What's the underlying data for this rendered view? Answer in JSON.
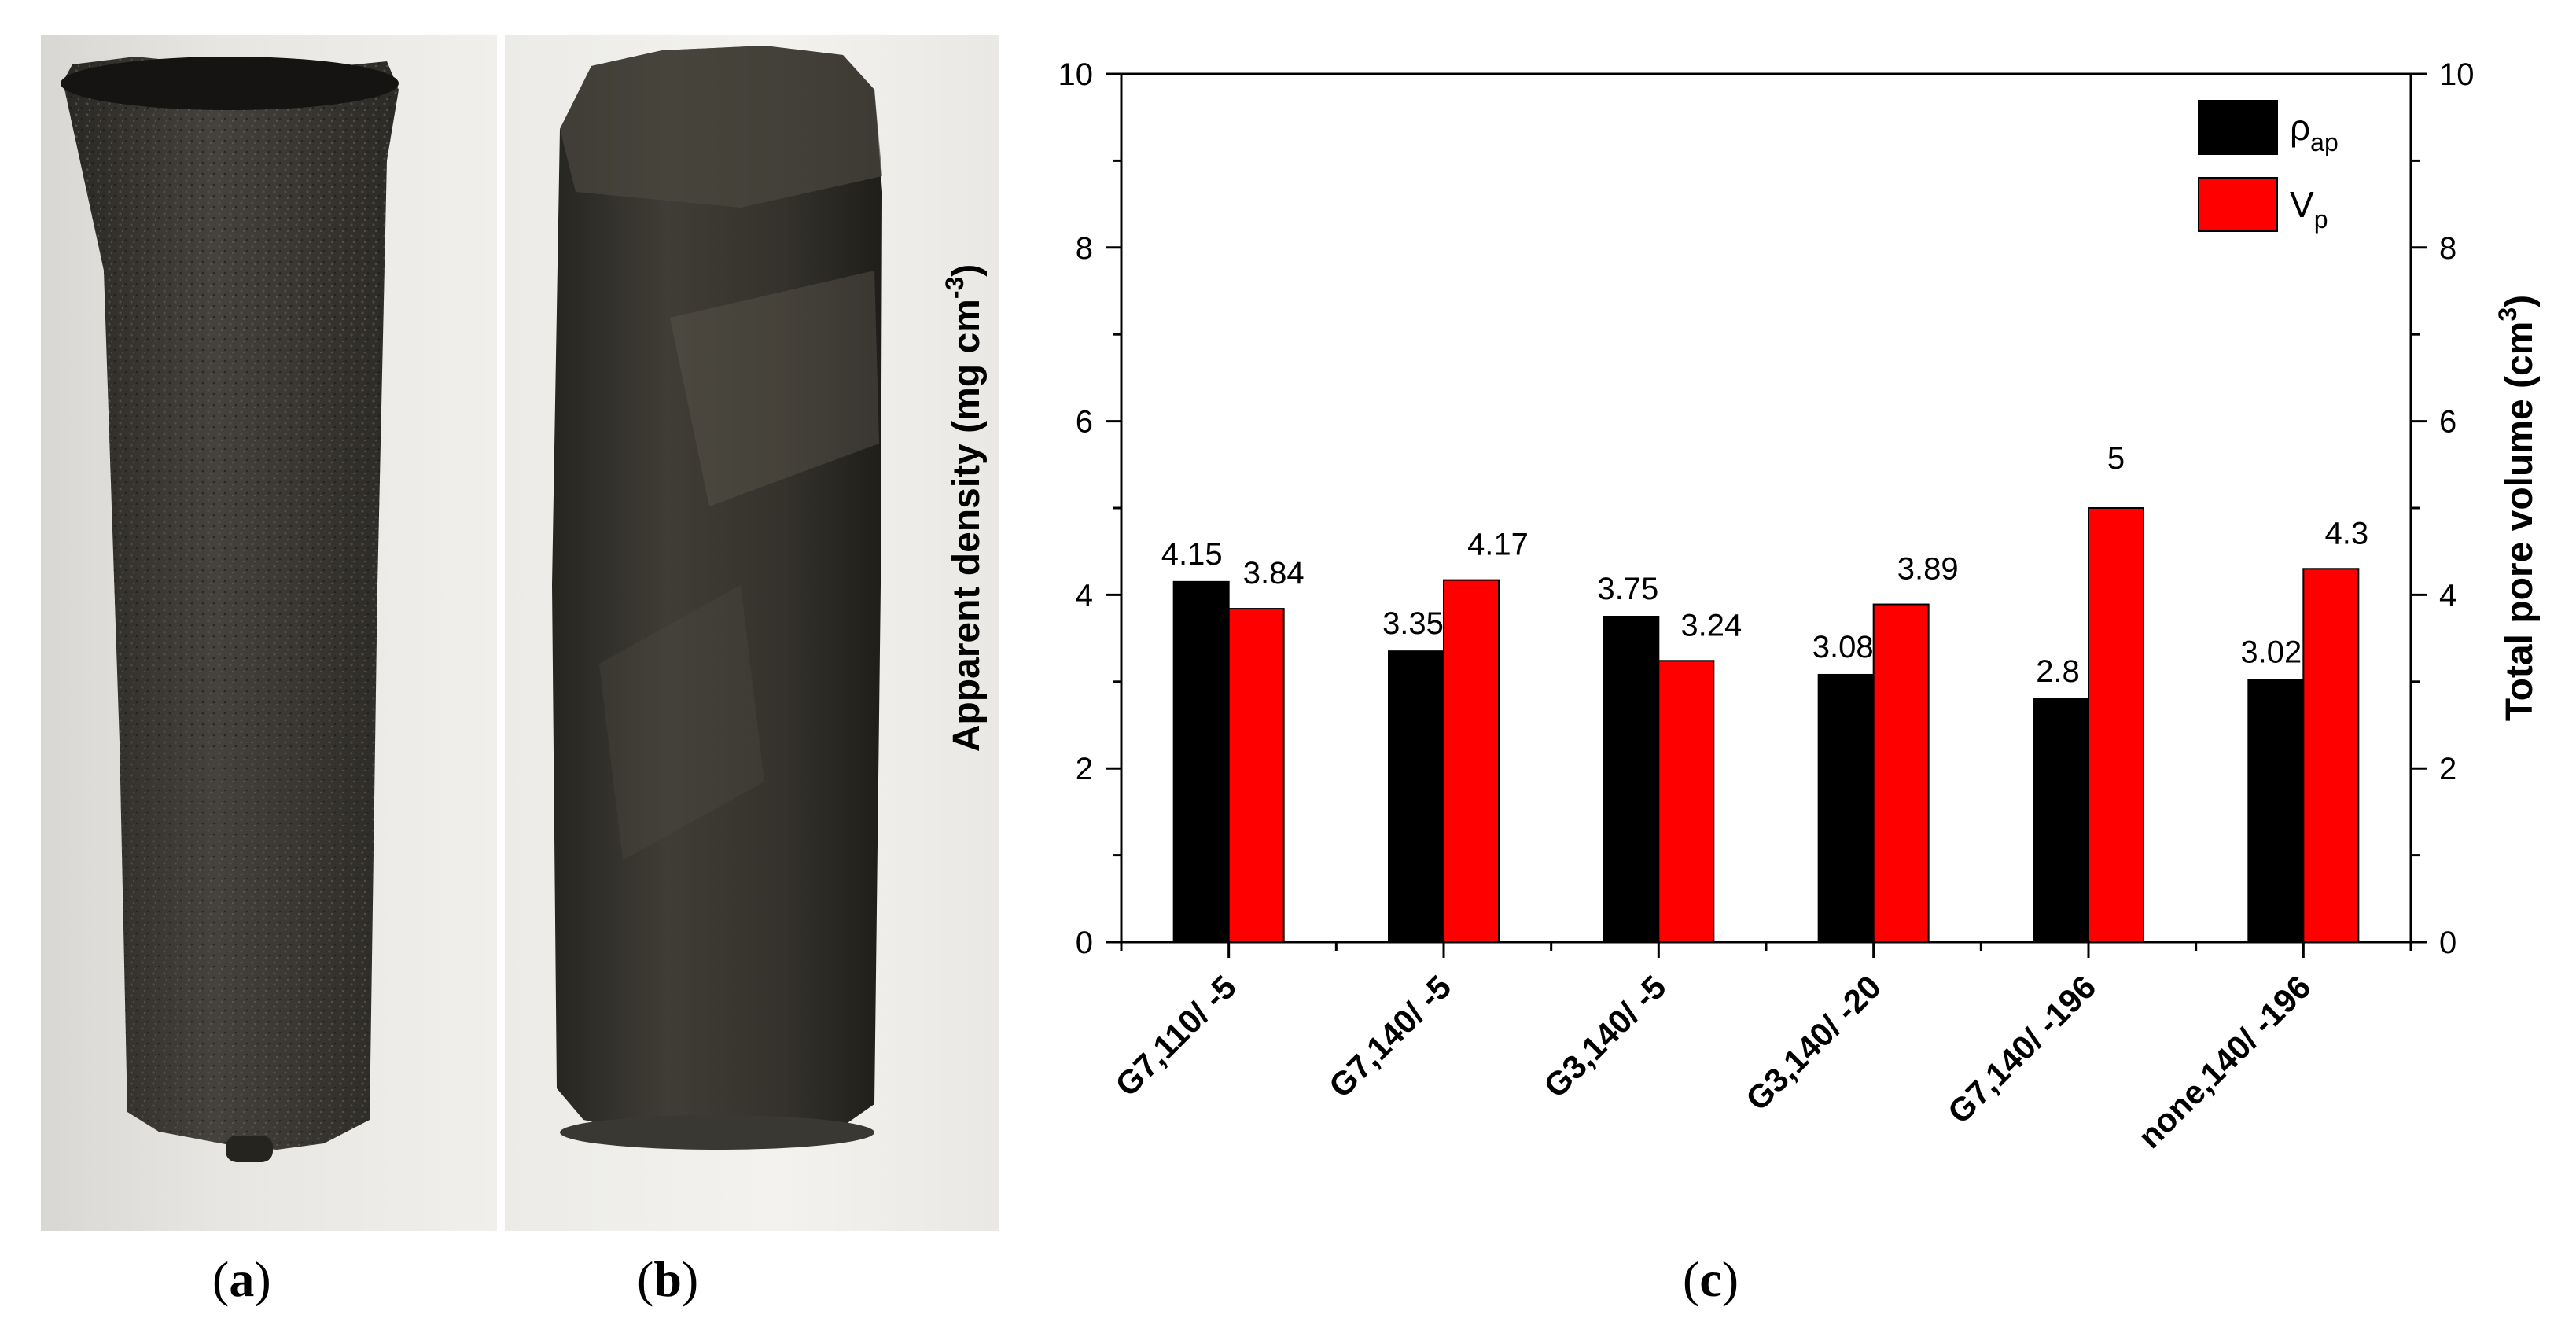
{
  "panels": {
    "a": {
      "label": "a"
    },
    "b": {
      "label": "b"
    },
    "c": {
      "label": "c"
    }
  },
  "chart_data": {
    "type": "bar",
    "title": "",
    "categories": [
      "G7,110/ -5",
      "G7,140/ -5",
      "G3,140/ -5",
      "G3,140/ -20",
      "G7,140/ -196",
      "none,140/ -196"
    ],
    "series": [
      {
        "name": "ρap",
        "legend_main": "ρ",
        "legend_sub": "ap",
        "axis": "left",
        "color": "#000000",
        "values": [
          4.15,
          3.35,
          3.75,
          3.08,
          2.8,
          3.02
        ],
        "data_labels": [
          "4.15",
          "3.35",
          "3.75",
          "3.08",
          "2.8",
          "3.02"
        ]
      },
      {
        "name": "Vp",
        "legend_main": "V",
        "legend_sub": "p",
        "axis": "right",
        "color": "#ff0000",
        "values": [
          3.84,
          4.17,
          3.24,
          3.89,
          5,
          4.3
        ],
        "data_labels": [
          "3.84",
          "4.17",
          "3.24",
          "3.89",
          "5",
          "4.3"
        ]
      }
    ],
    "ylabel_left": {
      "main": "Apparent density (mg cm",
      "sup": "-3",
      "end": ")"
    },
    "ylabel_right": {
      "main": "Total pore volume (cm",
      "sup": "3",
      "end": ")"
    },
    "ylim_left": [
      0,
      10
    ],
    "ylim_right": [
      0,
      10
    ],
    "yticks": [
      "0",
      "2",
      "4",
      "6",
      "8",
      "10"
    ],
    "legend": "top-right",
    "grid": false
  }
}
